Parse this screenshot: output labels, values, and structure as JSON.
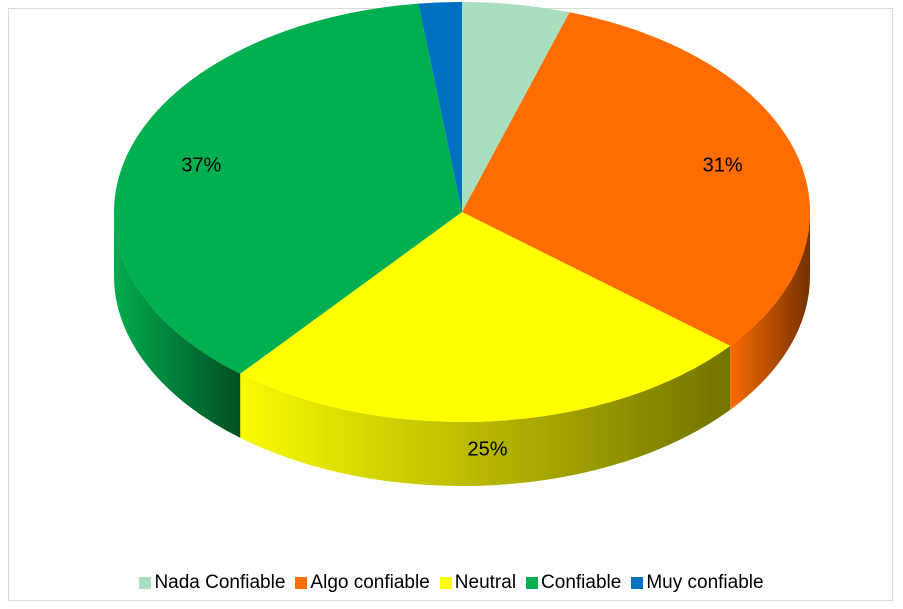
{
  "chart_data": {
    "type": "pie",
    "style": "3d",
    "title": "",
    "categories": [
      "Nada Confiable",
      "Algo confiable",
      "Neutral",
      "Confiable",
      "Muy confiable"
    ],
    "values": [
      5,
      31,
      25,
      37,
      2
    ],
    "data_labels": [
      "5%",
      "31%",
      "25%",
      "37%",
      "2%"
    ],
    "colors": [
      "#a9dfbf",
      "#ff6d00",
      "#ffff00",
      "#00b050",
      "#0070c0"
    ],
    "legend_position": "bottom"
  }
}
